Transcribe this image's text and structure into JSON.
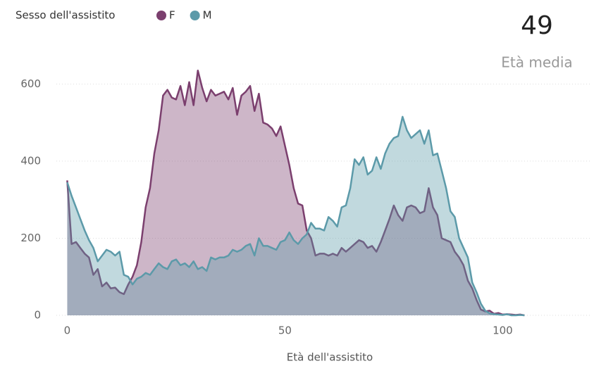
{
  "chart_data": {
    "type": "area",
    "legend_title": "Sesso dell'assistito",
    "kpi": {
      "value": "49",
      "label": "Età media"
    },
    "x_label": "Età dell'assistito",
    "x": [
      0,
      1,
      2,
      3,
      4,
      5,
      6,
      7,
      8,
      9,
      10,
      11,
      12,
      13,
      14,
      15,
      16,
      17,
      18,
      19,
      20,
      21,
      22,
      23,
      24,
      25,
      26,
      27,
      28,
      29,
      30,
      31,
      32,
      33,
      34,
      35,
      36,
      37,
      38,
      39,
      40,
      41,
      42,
      43,
      44,
      45,
      46,
      47,
      48,
      49,
      50,
      51,
      52,
      53,
      54,
      55,
      56,
      57,
      58,
      59,
      60,
      61,
      62,
      63,
      64,
      65,
      66,
      67,
      68,
      69,
      70,
      71,
      72,
      73,
      74,
      75,
      76,
      77,
      78,
      79,
      80,
      81,
      82,
      83,
      84,
      85,
      86,
      87,
      88,
      89,
      90,
      91,
      92,
      93,
      94,
      95,
      96,
      97,
      98,
      99,
      100,
      101,
      102,
      103,
      104,
      105
    ],
    "series": [
      {
        "name": "F",
        "color": "#7b3f6e",
        "values": [
          350,
          185,
          190,
          175,
          160,
          150,
          105,
          120,
          75,
          85,
          70,
          72,
          60,
          55,
          80,
          100,
          130,
          190,
          280,
          330,
          420,
          480,
          570,
          585,
          565,
          560,
          595,
          545,
          605,
          545,
          635,
          590,
          555,
          585,
          570,
          575,
          580,
          560,
          590,
          520,
          570,
          580,
          595,
          530,
          575,
          500,
          495,
          485,
          465,
          490,
          440,
          390,
          330,
          290,
          285,
          220,
          200,
          155,
          160,
          160,
          155,
          160,
          155,
          175,
          165,
          175,
          185,
          195,
          190,
          175,
          180,
          165,
          190,
          220,
          250,
          285,
          260,
          245,
          280,
          285,
          280,
          265,
          270,
          330,
          280,
          260,
          200,
          195,
          190,
          165,
          150,
          130,
          90,
          70,
          40,
          15,
          10,
          12,
          4,
          6,
          2,
          3,
          2,
          1,
          2,
          0
        ]
      },
      {
        "name": "M",
        "color": "#5c9aa9",
        "values": [
          345,
          310,
          280,
          250,
          220,
          195,
          175,
          140,
          155,
          170,
          165,
          155,
          165,
          105,
          100,
          80,
          95,
          100,
          110,
          105,
          120,
          135,
          125,
          120,
          140,
          145,
          130,
          135,
          125,
          140,
          120,
          125,
          115,
          150,
          145,
          150,
          150,
          155,
          170,
          165,
          170,
          180,
          185,
          155,
          200,
          180,
          180,
          175,
          170,
          190,
          195,
          215,
          195,
          185,
          200,
          210,
          240,
          225,
          225,
          220,
          255,
          245,
          230,
          280,
          285,
          330,
          405,
          390,
          410,
          365,
          375,
          410,
          380,
          420,
          445,
          460,
          465,
          515,
          480,
          460,
          470,
          480,
          445,
          480,
          415,
          420,
          375,
          330,
          270,
          255,
          200,
          175,
          150,
          85,
          60,
          30,
          12,
          5,
          3,
          2,
          1,
          3,
          0,
          0,
          1,
          0
        ]
      }
    ],
    "xlim": [
      -2.5,
      120
    ],
    "xticks": [
      0,
      50,
      100
    ],
    "ylim": [
      0,
      650
    ],
    "yticks": [
      0,
      200,
      400,
      600
    ],
    "grid": true
  }
}
